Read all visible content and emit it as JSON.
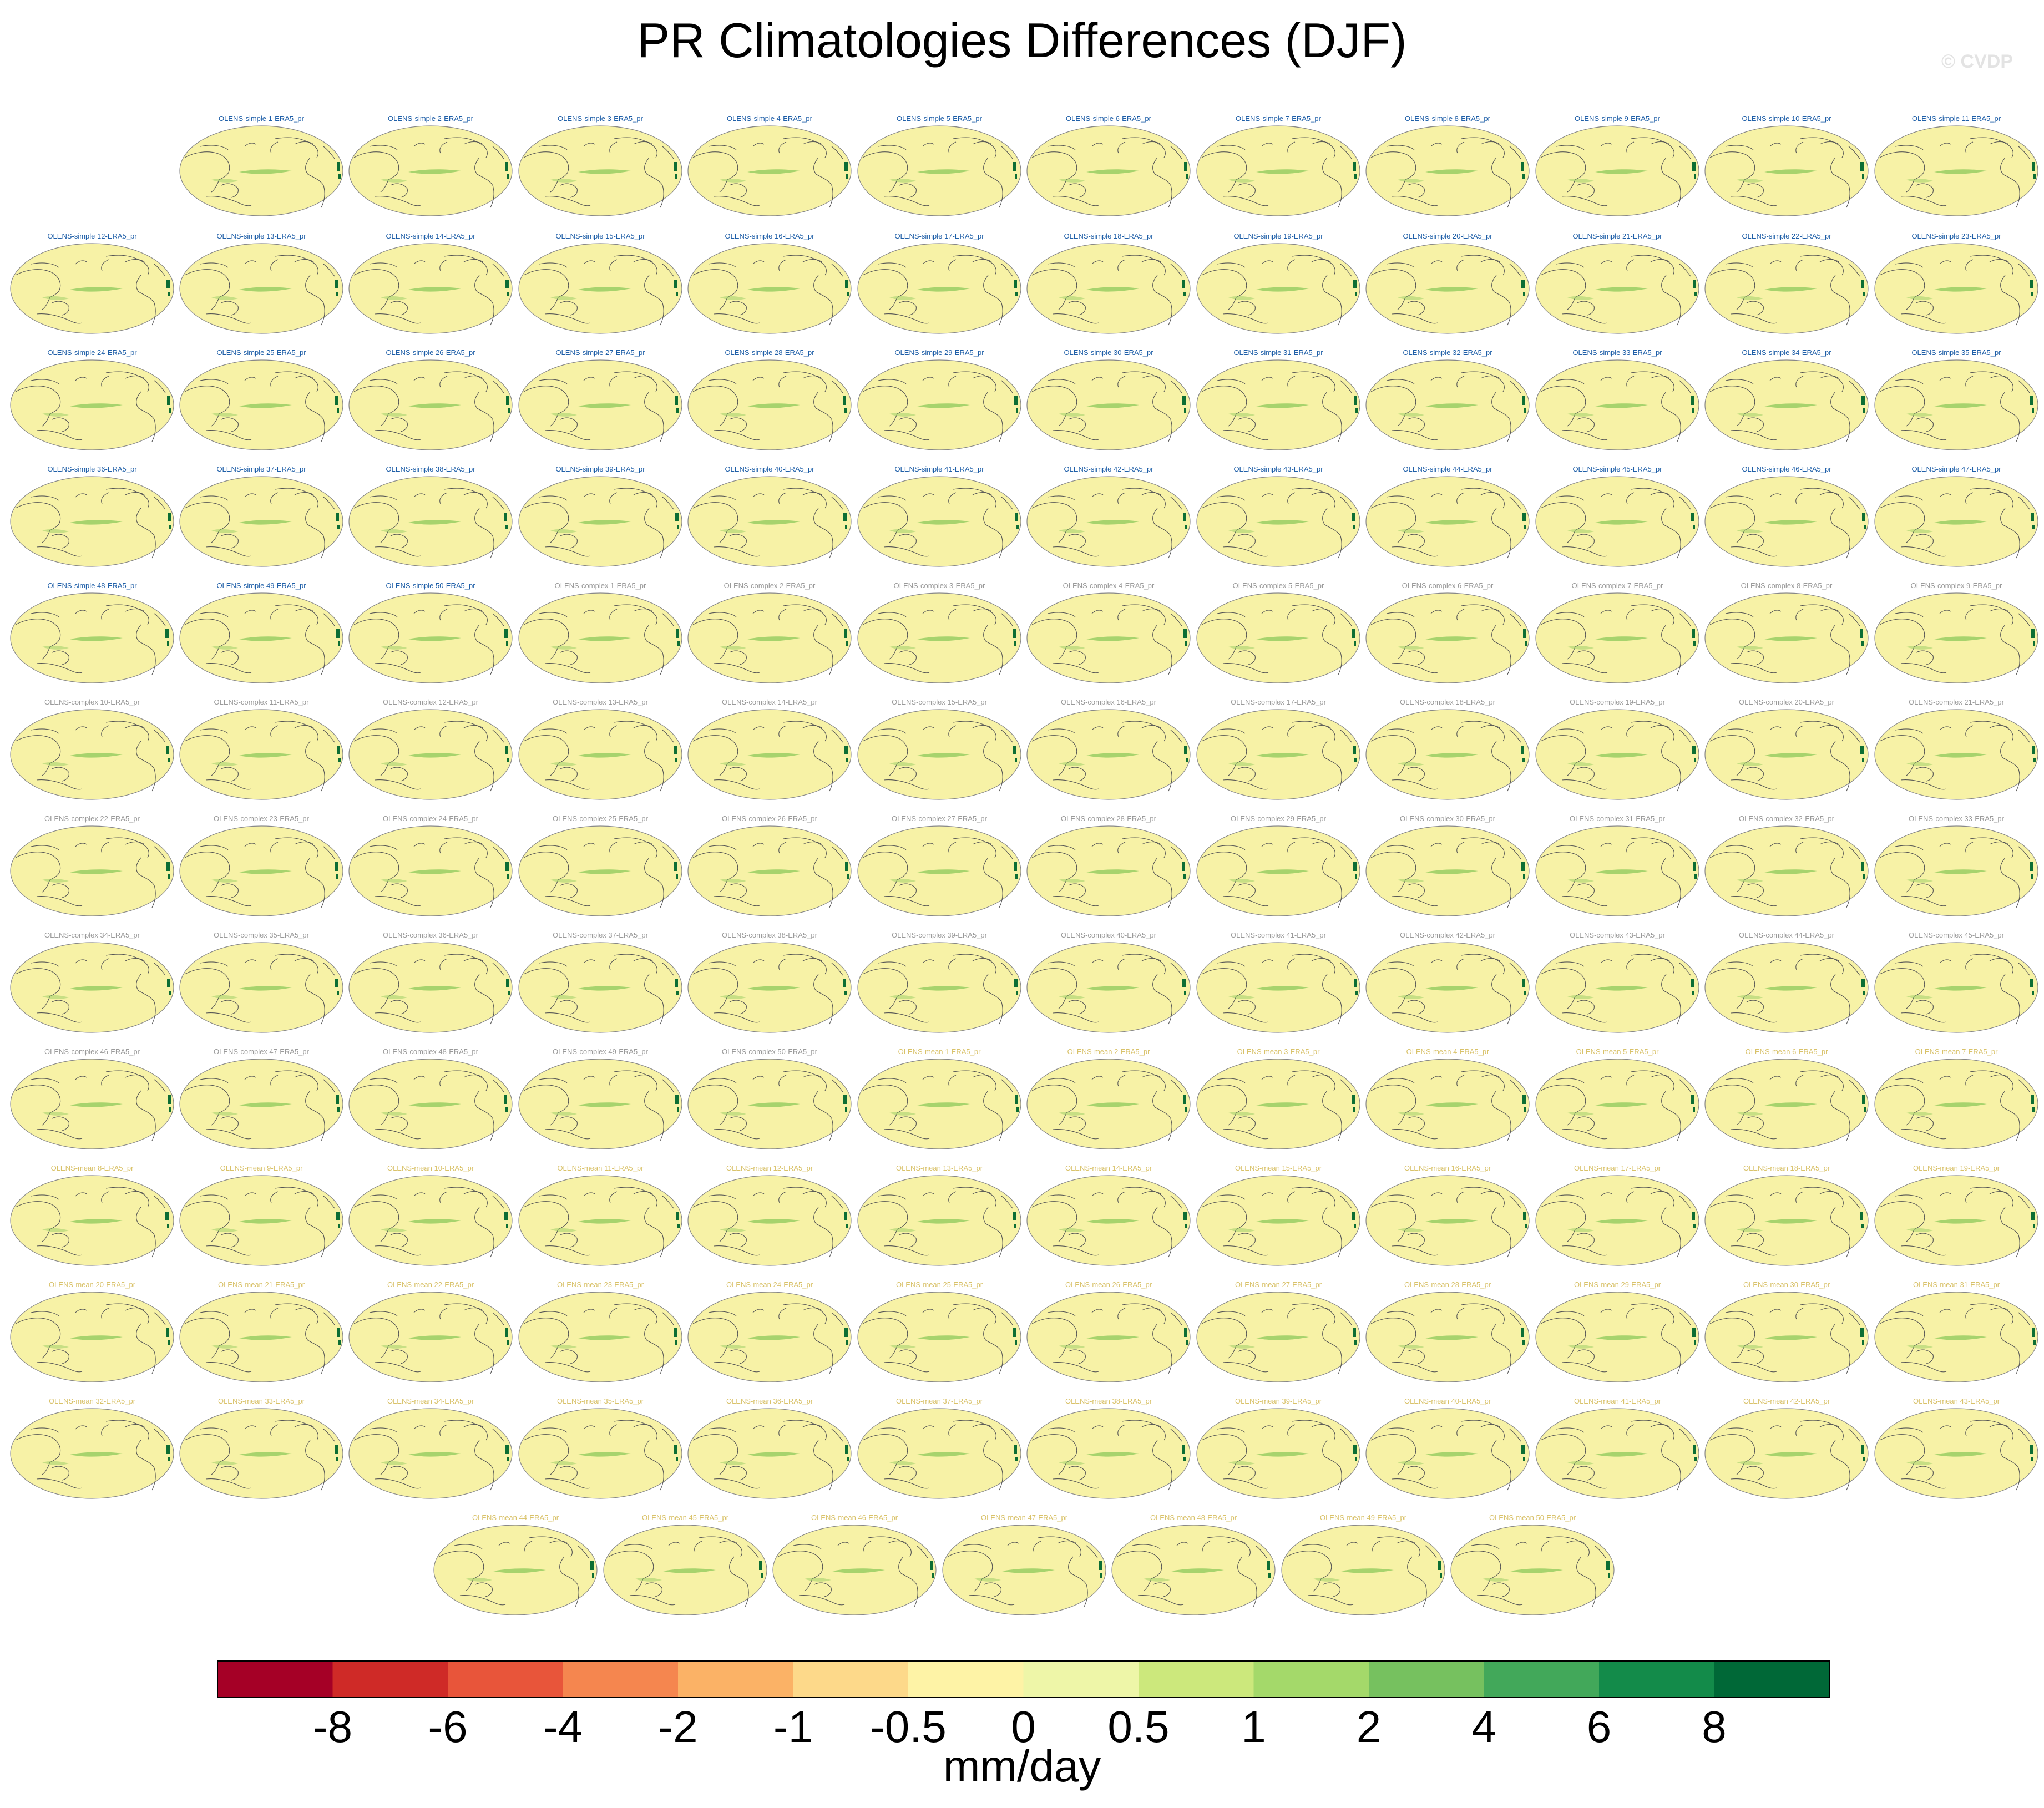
{
  "title": "PR Climatologies Differences (DJF)",
  "watermark": "© CVDP",
  "colors": {
    "label_simple": "#1f5fa8",
    "label_complex": "#9a9a9a",
    "label_mean": "#d9c26a",
    "ocean_fill": "#f7f2a6",
    "coast": "#555555",
    "positive_anomaly": "#8cc85a",
    "strong_positive": "#0d6e34"
  },
  "chart_data": {
    "type": "map-panel-grid",
    "field": "precipitation climatology difference",
    "season": "DJF",
    "reference": "ERA5",
    "panels": [
      "OLENS-simple 1-ERA5_pr",
      "OLENS-simple 2-ERA5_pr",
      "OLENS-simple 3-ERA5_pr",
      "OLENS-simple 4-ERA5_pr",
      "OLENS-simple 5-ERA5_pr",
      "OLENS-simple 6-ERA5_pr",
      "OLENS-simple 7-ERA5_pr",
      "OLENS-simple 8-ERA5_pr",
      "OLENS-simple 9-ERA5_pr",
      "OLENS-simple 10-ERA5_pr",
      "OLENS-simple 11-ERA5_pr",
      "OLENS-simple 12-ERA5_pr",
      "OLENS-simple 13-ERA5_pr",
      "OLENS-simple 14-ERA5_pr",
      "OLENS-simple 15-ERA5_pr",
      "OLENS-simple 16-ERA5_pr",
      "OLENS-simple 17-ERA5_pr",
      "OLENS-simple 18-ERA5_pr",
      "OLENS-simple 19-ERA5_pr",
      "OLENS-simple 20-ERA5_pr",
      "OLENS-simple 21-ERA5_pr",
      "OLENS-simple 22-ERA5_pr",
      "OLENS-simple 23-ERA5_pr",
      "OLENS-simple 24-ERA5_pr",
      "OLENS-simple 25-ERA5_pr",
      "OLENS-simple 26-ERA5_pr",
      "OLENS-simple 27-ERA5_pr",
      "OLENS-simple 28-ERA5_pr",
      "OLENS-simple 29-ERA5_pr",
      "OLENS-simple 30-ERA5_pr",
      "OLENS-simple 31-ERA5_pr",
      "OLENS-simple 32-ERA5_pr",
      "OLENS-simple 33-ERA5_pr",
      "OLENS-simple 34-ERA5_pr",
      "OLENS-simple 35-ERA5_pr",
      "OLENS-simple 36-ERA5_pr",
      "OLENS-simple 37-ERA5_pr",
      "OLENS-simple 38-ERA5_pr",
      "OLENS-simple 39-ERA5_pr",
      "OLENS-simple 40-ERA5_pr",
      "OLENS-simple 41-ERA5_pr",
      "OLENS-simple 42-ERA5_pr",
      "OLENS-simple 43-ERA5_pr",
      "OLENS-simple 44-ERA5_pr",
      "OLENS-simple 45-ERA5_pr",
      "OLENS-simple 46-ERA5_pr",
      "OLENS-simple 47-ERA5_pr",
      "OLENS-simple 48-ERA5_pr",
      "OLENS-simple 49-ERA5_pr",
      "OLENS-simple 50-ERA5_pr",
      "OLENS-complex 1-ERA5_pr",
      "OLENS-complex 2-ERA5_pr",
      "OLENS-complex 3-ERA5_pr",
      "OLENS-complex 4-ERA5_pr",
      "OLENS-complex 5-ERA5_pr",
      "OLENS-complex 6-ERA5_pr",
      "OLENS-complex 7-ERA5_pr",
      "OLENS-complex 8-ERA5_pr",
      "OLENS-complex 9-ERA5_pr",
      "OLENS-complex 10-ERA5_pr",
      "OLENS-complex 11-ERA5_pr",
      "OLENS-complex 12-ERA5_pr",
      "OLENS-complex 13-ERA5_pr",
      "OLENS-complex 14-ERA5_pr",
      "OLENS-complex 15-ERA5_pr",
      "OLENS-complex 16-ERA5_pr",
      "OLENS-complex 17-ERA5_pr",
      "OLENS-complex 18-ERA5_pr",
      "OLENS-complex 19-ERA5_pr",
      "OLENS-complex 20-ERA5_pr",
      "OLENS-complex 21-ERA5_pr",
      "OLENS-complex 22-ERA5_pr",
      "OLENS-complex 23-ERA5_pr",
      "OLENS-complex 24-ERA5_pr",
      "OLENS-complex 25-ERA5_pr",
      "OLENS-complex 26-ERA5_pr",
      "OLENS-complex 27-ERA5_pr",
      "OLENS-complex 28-ERA5_pr",
      "OLENS-complex 29-ERA5_pr",
      "OLENS-complex 30-ERA5_pr",
      "OLENS-complex 31-ERA5_pr",
      "OLENS-complex 32-ERA5_pr",
      "OLENS-complex 33-ERA5_pr",
      "OLENS-complex 34-ERA5_pr",
      "OLENS-complex 35-ERA5_pr",
      "OLENS-complex 36-ERA5_pr",
      "OLENS-complex 37-ERA5_pr",
      "OLENS-complex 38-ERA5_pr",
      "OLENS-complex 39-ERA5_pr",
      "OLENS-complex 40-ERA5_pr",
      "OLENS-complex 41-ERA5_pr",
      "OLENS-complex 42-ERA5_pr",
      "OLENS-complex 43-ERA5_pr",
      "OLENS-complex 44-ERA5_pr",
      "OLENS-complex 45-ERA5_pr",
      "OLENS-complex 46-ERA5_pr",
      "OLENS-complex 47-ERA5_pr",
      "OLENS-complex 48-ERA5_pr",
      "OLENS-complex 49-ERA5_pr",
      "OLENS-complex 50-ERA5_pr",
      "OLENS-mean 1-ERA5_pr",
      "OLENS-mean 2-ERA5_pr",
      "OLENS-mean 3-ERA5_pr",
      "OLENS-mean 4-ERA5_pr",
      "OLENS-mean 5-ERA5_pr",
      "OLENS-mean 6-ERA5_pr",
      "OLENS-mean 7-ERA5_pr",
      "OLENS-mean 8-ERA5_pr",
      "OLENS-mean 9-ERA5_pr",
      "OLENS-mean 10-ERA5_pr",
      "OLENS-mean 11-ERA5_pr",
      "OLENS-mean 12-ERA5_pr",
      "OLENS-mean 13-ERA5_pr",
      "OLENS-mean 14-ERA5_pr",
      "OLENS-mean 15-ERA5_pr",
      "OLENS-mean 16-ERA5_pr",
      "OLENS-mean 17-ERA5_pr",
      "OLENS-mean 18-ERA5_pr",
      "OLENS-mean 19-ERA5_pr",
      "OLENS-mean 20-ERA5_pr",
      "OLENS-mean 21-ERA5_pr",
      "OLENS-mean 22-ERA5_pr",
      "OLENS-mean 23-ERA5_pr",
      "OLENS-mean 24-ERA5_pr",
      "OLENS-mean 25-ERA5_pr",
      "OLENS-mean 26-ERA5_pr",
      "OLENS-mean 27-ERA5_pr",
      "OLENS-mean 28-ERA5_pr",
      "OLENS-mean 29-ERA5_pr",
      "OLENS-mean 30-ERA5_pr",
      "OLENS-mean 31-ERA5_pr",
      "OLENS-mean 32-ERA5_pr",
      "OLENS-mean 33-ERA5_pr",
      "OLENS-mean 34-ERA5_pr",
      "OLENS-mean 35-ERA5_pr",
      "OLENS-mean 36-ERA5_pr",
      "OLENS-mean 37-ERA5_pr",
      "OLENS-mean 38-ERA5_pr",
      "OLENS-mean 39-ERA5_pr",
      "OLENS-mean 40-ERA5_pr",
      "OLENS-mean 41-ERA5_pr",
      "OLENS-mean 42-ERA5_pr",
      "OLENS-mean 43-ERA5_pr",
      "OLENS-mean 44-ERA5_pr",
      "OLENS-mean 45-ERA5_pr",
      "OLENS-mean 46-ERA5_pr",
      "OLENS-mean 47-ERA5_pr",
      "OLENS-mean 48-ERA5_pr",
      "OLENS-mean 49-ERA5_pr",
      "OLENS-mean 50-ERA5_pr"
    ],
    "colorbar": {
      "units": "mm/day",
      "tick_labels": [
        "-8",
        "-6",
        "-4",
        "-2",
        "-1",
        "-0.5",
        "0",
        "0.5",
        "1",
        "2",
        "4",
        "6",
        "8"
      ],
      "bin_colors": [
        "#a50026",
        "#cf2a27",
        "#e8553a",
        "#f5864f",
        "#fbb266",
        "#fdd98a",
        "#fef3a6",
        "#eef6a8",
        "#cce87c",
        "#a4d96a",
        "#76c15f",
        "#42a85a",
        "#138b4a",
        "#006837"
      ]
    }
  }
}
